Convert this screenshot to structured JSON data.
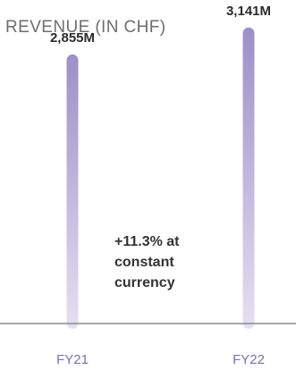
{
  "chart_data": {
    "type": "bar",
    "title": "REVENUE (IN CHF)",
    "categories": [
      "FY21",
      "FY22"
    ],
    "values": [
      2855,
      3141
    ],
    "value_labels": [
      "2,855M",
      "3,141M"
    ],
    "annotation": "+11.3% at\nconstant\ncurrency",
    "ylim": [
      0,
      3300
    ],
    "grid": false,
    "legend": "none",
    "colors": {
      "bar_top": "#9b90c8",
      "bar_bottom": "#e4e0f1",
      "baseline": "#8a8a8a",
      "category_label": "#7b6fb3",
      "value_label": "#2b2b2b"
    }
  }
}
